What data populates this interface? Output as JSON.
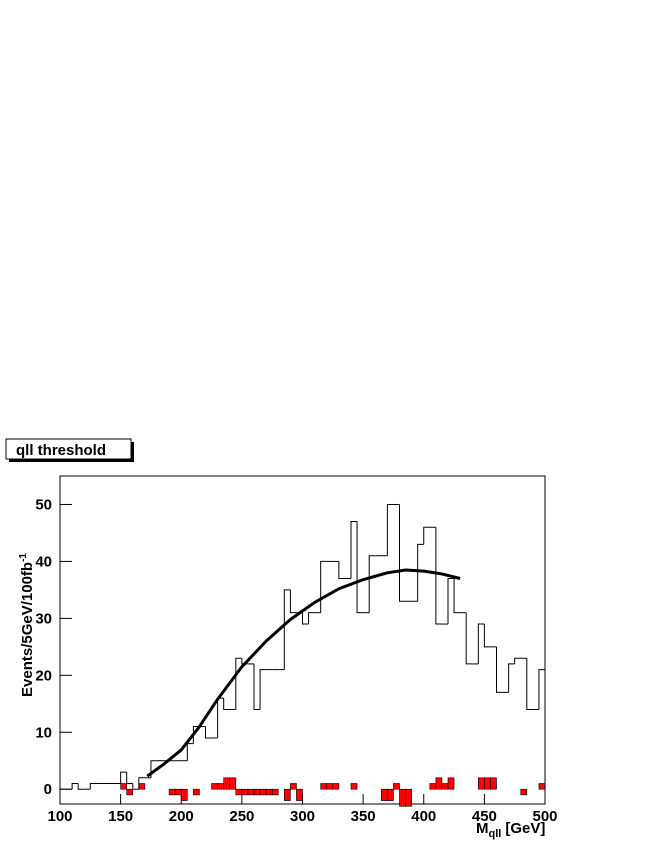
{
  "chart_data": {
    "type": "histogram",
    "title": "qll threshold",
    "x_label": {
      "main": "M",
      "sub": "qll",
      "unit": "[GeV]"
    },
    "y_label": {
      "main": "Events/5GeV/100fb",
      "sup": "-1"
    },
    "bins": [
      100,
      105,
      110,
      115,
      120,
      125,
      130,
      135,
      140,
      145,
      150,
      155,
      160,
      165,
      170,
      175,
      180,
      185,
      190,
      195,
      200,
      205,
      210,
      215,
      220,
      225,
      230,
      235,
      240,
      245,
      250,
      255,
      260,
      265,
      270,
      275,
      280,
      285,
      290,
      295,
      300,
      305,
      310,
      315,
      320,
      325,
      330,
      335,
      340,
      345,
      350,
      355,
      360,
      365,
      370,
      375,
      380,
      385,
      390,
      395,
      400,
      405,
      410,
      415,
      420,
      425,
      430,
      435,
      440,
      445,
      450,
      455,
      460,
      465,
      470,
      475,
      480,
      485,
      490,
      495,
      500
    ],
    "series": [
      {
        "color": "#000000",
        "values": [
          0,
          0,
          1,
          0,
          0,
          1,
          1,
          1,
          1,
          1,
          3,
          1,
          0,
          2,
          2,
          5,
          5,
          5,
          5,
          5,
          5,
          8,
          11,
          11,
          9,
          9,
          16,
          14,
          14,
          23,
          22,
          22,
          14,
          21,
          21,
          21,
          21,
          35,
          31,
          31,
          29,
          31,
          31,
          40,
          40,
          40,
          37,
          37,
          47,
          31,
          31,
          41,
          41,
          41,
          50,
          50,
          33,
          33,
          33,
          43,
          46,
          46,
          29,
          29,
          37,
          31,
          31,
          22,
          22,
          29,
          25,
          25,
          17,
          17,
          22,
          23,
          23,
          14,
          14,
          21
        ]
      },
      {
        "color": "#ff0000",
        "values": [
          0,
          0,
          0,
          0,
          0,
          0,
          0,
          0,
          0,
          0,
          1,
          -1,
          0,
          1,
          0,
          0,
          0,
          0,
          -1,
          -1,
          -2,
          0,
          -1,
          0,
          0,
          1,
          1,
          2,
          2,
          -1,
          -1,
          -1,
          -1,
          -1,
          -1,
          -1,
          0,
          -2,
          1,
          -2,
          0,
          0,
          0,
          1,
          1,
          1,
          0,
          0,
          1,
          0,
          0,
          0,
          0,
          -2,
          -2,
          1,
          -3,
          -3,
          0,
          0,
          0,
          1,
          2,
          1,
          2,
          0,
          0,
          0,
          0,
          2,
          2,
          2,
          0,
          0,
          0,
          0,
          -1,
          0,
          0,
          1
        ]
      }
    ],
    "fit": {
      "color": "#000000",
      "x": [
        172,
        185,
        200,
        215,
        230,
        250,
        270,
        290,
        310,
        330,
        350,
        370,
        385,
        400,
        415,
        430
      ],
      "y": [
        2.3,
        4.3,
        6.9,
        11,
        15.8,
        21.5,
        26,
        29.8,
        32.8,
        35.2,
        36.8,
        38,
        38.5,
        38.3,
        37.8,
        37
      ]
    },
    "xlim": [
      100,
      500
    ],
    "xticks": [
      100,
      150,
      200,
      250,
      300,
      350,
      400,
      450,
      500
    ],
    "ylim": [
      -2.6,
      55
    ],
    "yticks": [
      0,
      10,
      20,
      30,
      40,
      50
    ]
  }
}
